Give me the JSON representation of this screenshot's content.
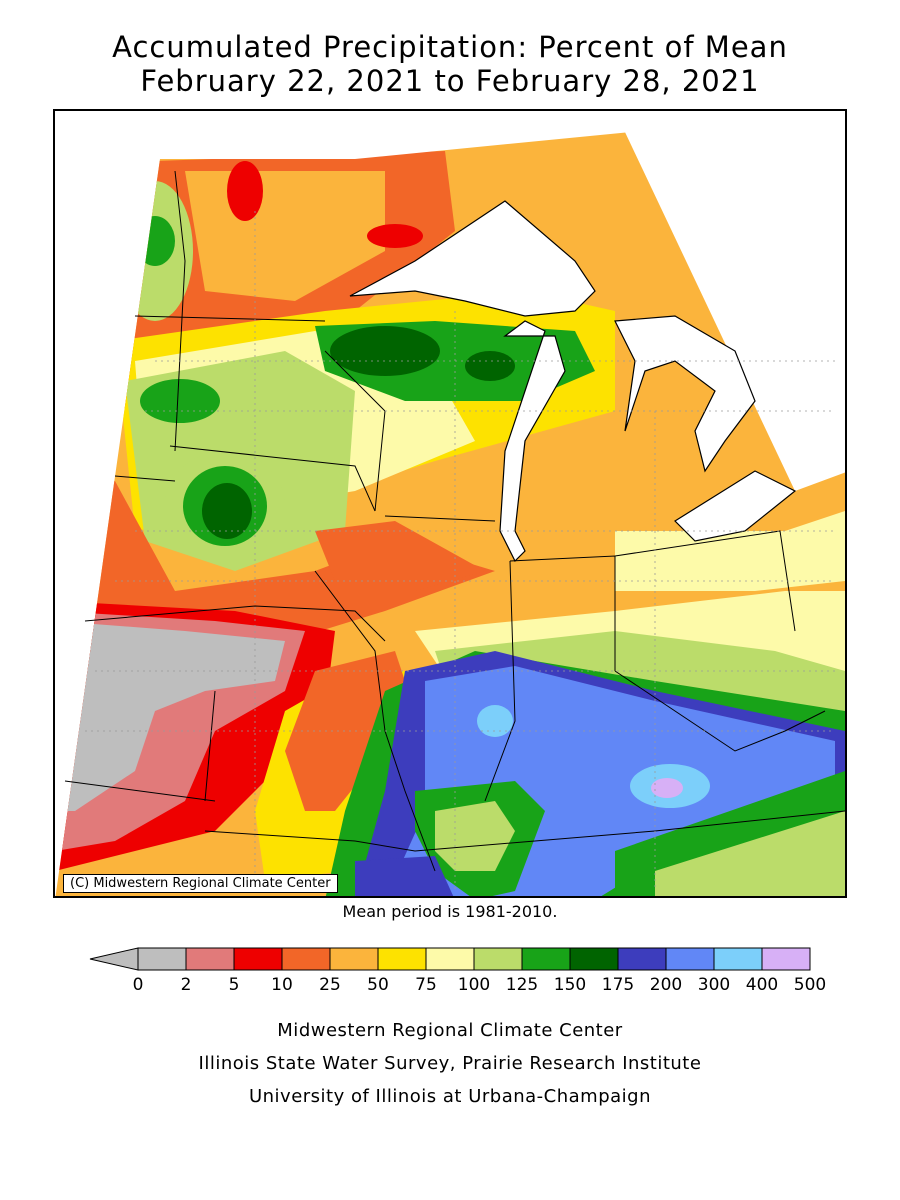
{
  "title_line1": "Accumulated Precipitation: Percent of Mean",
  "title_line2": "February 22, 2021 to February 28, 2021",
  "copyright": "(C) Midwestern Regional Climate Center",
  "mean_period": "Mean period is 1981-2010.",
  "legend": {
    "bins": [
      {
        "label": "0",
        "color": "#bebebe"
      },
      {
        "label": "2",
        "color": "#e17a7a"
      },
      {
        "label": "5",
        "color": "#ee0000"
      },
      {
        "label": "10",
        "color": "#f26628"
      },
      {
        "label": "25",
        "color": "#fbb43c"
      },
      {
        "label": "50",
        "color": "#fde200"
      },
      {
        "label": "75",
        "color": "#fdfaa9"
      },
      {
        "label": "100",
        "color": "#bbdc6a"
      },
      {
        "label": "125",
        "color": "#18a318"
      },
      {
        "label": "150",
        "color": "#006400"
      },
      {
        "label": "175",
        "color": "#3d3dbd"
      },
      {
        "label": "200",
        "color": "#6187f6"
      },
      {
        "label": "300",
        "color": "#7ccffa"
      },
      {
        "label": "400",
        "color": "#d7b0f6"
      },
      {
        "label": "500",
        "color": ""
      }
    ],
    "underflow_color": "#bebebe"
  },
  "credits": [
    "Midwestern Regional Climate Center",
    "Illinois State Water Survey, Prairie Research Institute",
    "University of Illinois at Urbana-Champaign"
  ],
  "map_colors": {
    "lake": "#ffffff",
    "border": "#000000",
    "county_grid": "#9a9a9a"
  }
}
